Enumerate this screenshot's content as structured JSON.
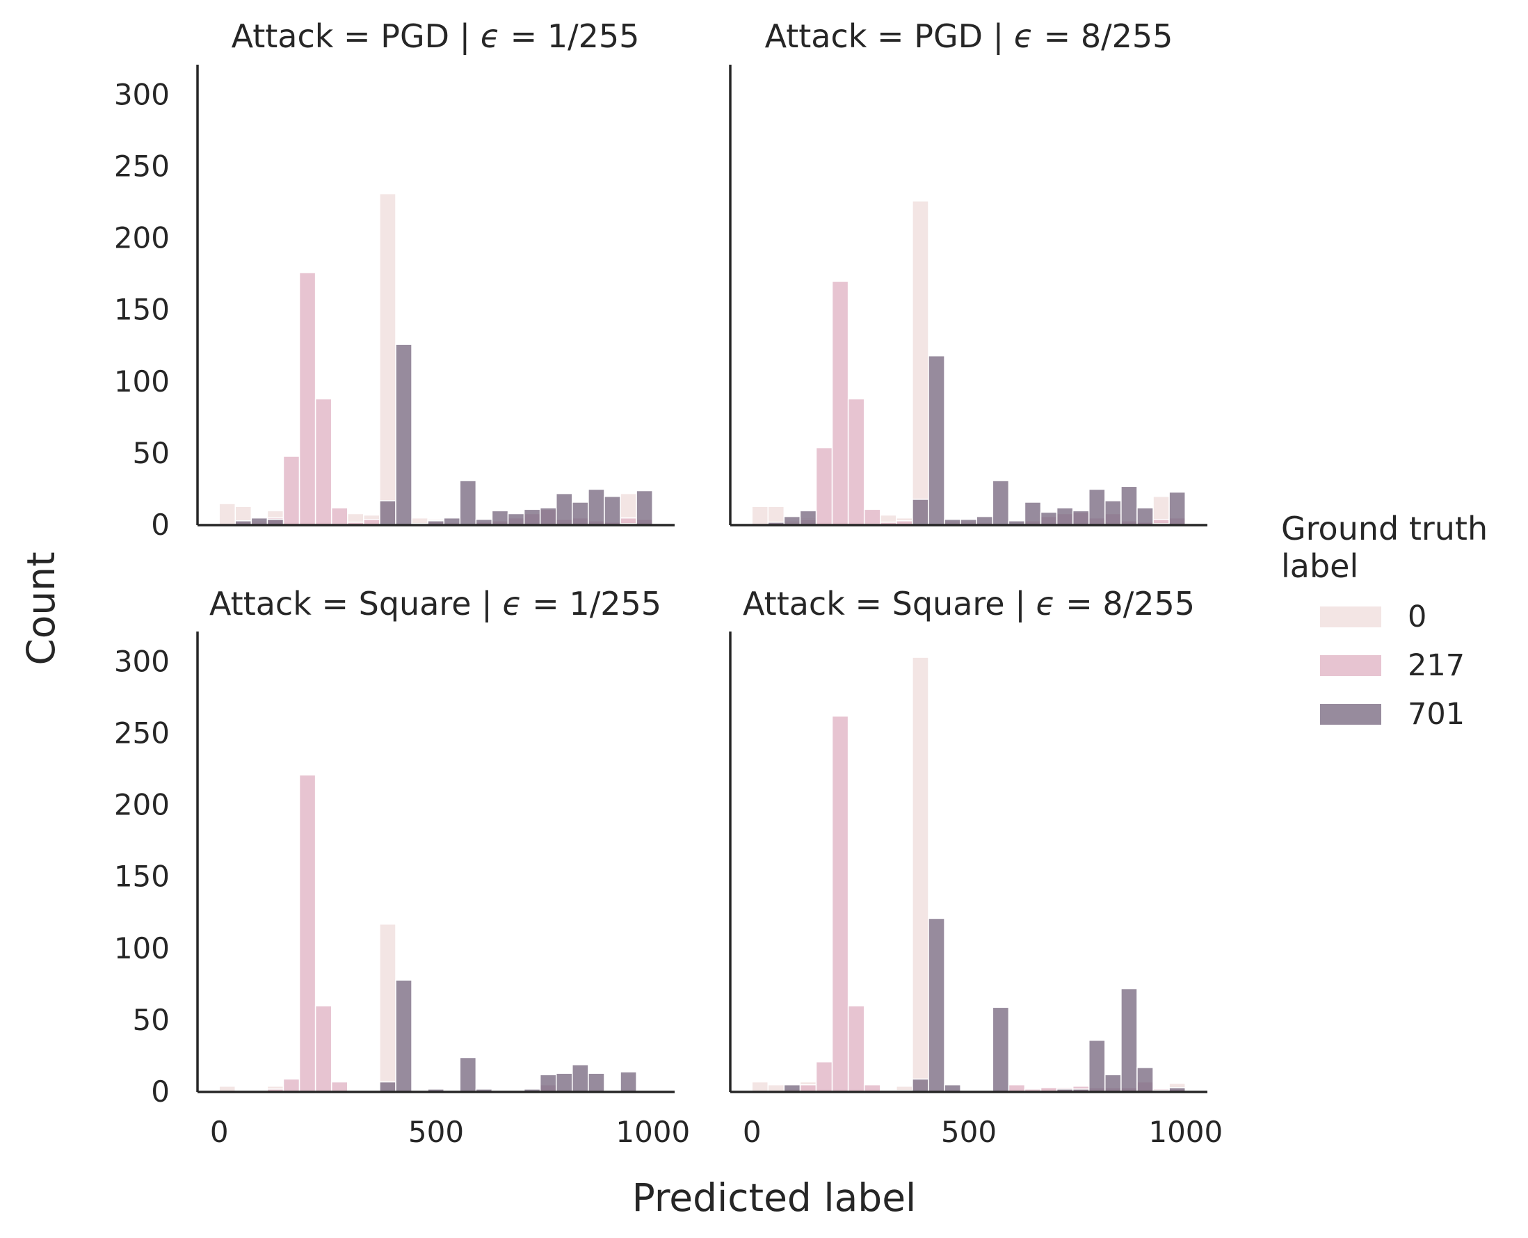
{
  "chart_data": {
    "type": "bar",
    "subtype": "overlaid-histogram-facet-grid",
    "xlabel": "Predicted label",
    "ylabel": "Count",
    "xlim": [
      -50,
      1050
    ],
    "ylim": [
      0,
      320
    ],
    "xticks": [
      0,
      500,
      1000
    ],
    "yticks": [
      0,
      50,
      100,
      150,
      200,
      250,
      300
    ],
    "grid": false,
    "bin_edges": [
      0,
      37,
      74,
      111,
      148,
      185,
      222,
      259,
      296,
      333,
      370,
      407,
      444,
      481,
      518,
      555,
      592,
      629,
      666,
      703,
      740,
      777,
      814,
      851,
      888,
      925,
      962,
      999
    ],
    "legend": {
      "title_lines": [
        "Ground truth",
        "label"
      ],
      "entries": [
        {
          "label": "0",
          "color": "#f1e1df",
          "opacity": 0.85
        },
        {
          "label": "217",
          "color": "#e3bac9",
          "opacity": 0.85
        },
        {
          "label": "701",
          "color": "#7d6e85",
          "opacity": 0.8
        }
      ]
    },
    "panels": [
      {
        "title_prefix": "Attack = PGD | ",
        "epsilon_symbol": "ϵ",
        "title_suffix": " = 1/255",
        "series": [
          {
            "name": "0",
            "values": [
              15,
              13,
              3,
              10,
              2,
              2,
              2,
              1,
              8,
              7,
              231,
              0,
              5,
              4,
              2,
              0,
              2,
              3,
              2,
              1,
              2,
              3,
              2,
              2,
              1,
              22,
              2
            ]
          },
          {
            "name": "217",
            "values": [
              0,
              0,
              0,
              5,
              48,
              176,
              88,
              12,
              2,
              4,
              1,
              0,
              0,
              0,
              0,
              0,
              2,
              3,
              5,
              8,
              11,
              4,
              5,
              3,
              2,
              5,
              4
            ]
          },
          {
            "name": "701",
            "values": [
              0,
              3,
              5,
              4,
              0,
              0,
              0,
              0,
              0,
              0,
              17,
              126,
              1,
              3,
              5,
              31,
              4,
              10,
              8,
              11,
              12,
              22,
              16,
              25,
              20,
              1,
              24
            ]
          }
        ]
      },
      {
        "title_prefix": "Attack = PGD | ",
        "epsilon_symbol": "ϵ",
        "title_suffix": " = 8/255",
        "series": [
          {
            "name": "0",
            "values": [
              13,
              13,
              3,
              5,
              2,
              2,
              2,
              1,
              7,
              5,
              226,
              0,
              3,
              3,
              2,
              0,
              2,
              3,
              2,
              1,
              2,
              4,
              3,
              2,
              1,
              20,
              2
            ]
          },
          {
            "name": "217",
            "values": [
              0,
              0,
              0,
              4,
              54,
              170,
              88,
              11,
              2,
              3,
              1,
              0,
              0,
              0,
              0,
              0,
              1,
              3,
              6,
              8,
              9,
              5,
              8,
              3,
              2,
              4,
              5
            ]
          },
          {
            "name": "701",
            "values": [
              0,
              2,
              6,
              10,
              0,
              0,
              0,
              0,
              0,
              0,
              18,
              118,
              4,
              4,
              6,
              31,
              3,
              16,
              9,
              12,
              10,
              25,
              17,
              27,
              12,
              1,
              23
            ]
          }
        ]
      },
      {
        "title_prefix": "Attack = Square | ",
        "epsilon_symbol": "ϵ",
        "title_suffix": " = 1/255",
        "series": [
          {
            "name": "0",
            "values": [
              4,
              1,
              1,
              4,
              1,
              1,
              1,
              1,
              1,
              1,
              117,
              0,
              1,
              1,
              1,
              1,
              1,
              1,
              1,
              1,
              1,
              1,
              1,
              1,
              1,
              1,
              1
            ]
          },
          {
            "name": "217",
            "values": [
              0,
              0,
              0,
              2,
              9,
              221,
              60,
              7,
              0,
              1,
              1,
              0,
              0,
              0,
              0,
              0,
              1,
              1,
              1,
              1,
              5,
              1,
              1,
              1,
              1,
              1,
              1
            ]
          },
          {
            "name": "701",
            "values": [
              0,
              0,
              0,
              0,
              0,
              0,
              0,
              0,
              0,
              0,
              7,
              78,
              0,
              2,
              0,
              24,
              2,
              1,
              1,
              2,
              12,
              13,
              19,
              13,
              1,
              14,
              1
            ]
          }
        ]
      },
      {
        "title_prefix": "Attack = Square | ",
        "epsilon_symbol": "ϵ",
        "title_suffix": " = 8/255",
        "series": [
          {
            "name": "0",
            "values": [
              7,
              5,
              2,
              7,
              2,
              2,
              2,
              2,
              1,
              4,
              303,
              0,
              1,
              1,
              1,
              1,
              2,
              1,
              3,
              2,
              2,
              2,
              2,
              2,
              2,
              1,
              6
            ]
          },
          {
            "name": "217",
            "values": [
              0,
              0,
              0,
              5,
              21,
              262,
              60,
              5,
              0,
              1,
              1,
              0,
              0,
              0,
              0,
              0,
              5,
              2,
              3,
              3,
              4,
              3,
              3,
              3,
              7,
              2,
              2
            ]
          },
          {
            "name": "701",
            "values": [
              0,
              0,
              5,
              0,
              0,
              0,
              0,
              0,
              0,
              0,
              9,
              121,
              5,
              0,
              0,
              59,
              0,
              0,
              0,
              2,
              2,
              36,
              12,
              72,
              17,
              1,
              3
            ]
          }
        ]
      }
    ]
  }
}
